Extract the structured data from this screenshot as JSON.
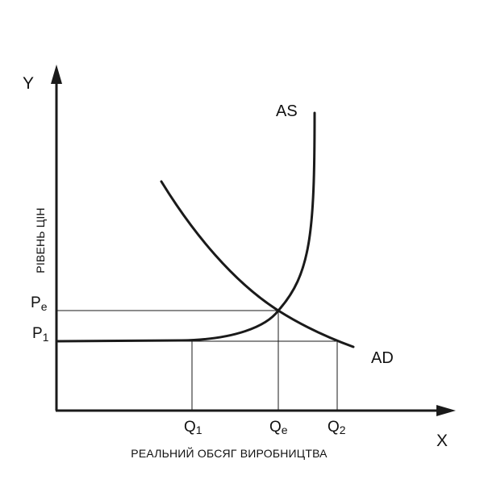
{
  "axes": {
    "y_letter": "Y",
    "x_letter": "X",
    "y_title": "РІВЕНЬ ЦІН",
    "x_title": "РЕАЛЬНИЙ ОБСЯГ ВИРОБНИЦТВА"
  },
  "curves": {
    "as_label": "AS",
    "ad_label": "AD"
  },
  "price_levels": {
    "pe": {
      "main": "P",
      "sub": "e"
    },
    "p1": {
      "main": "P",
      "sub": "1"
    }
  },
  "quantities": {
    "q1": {
      "main": "Q",
      "sub": "1"
    },
    "qe": {
      "main": "Q",
      "sub": "e"
    },
    "q2": {
      "main": "Q",
      "sub": "2"
    }
  },
  "colors": {
    "ink": "#1a1a1a",
    "background": "#ffffff"
  }
}
